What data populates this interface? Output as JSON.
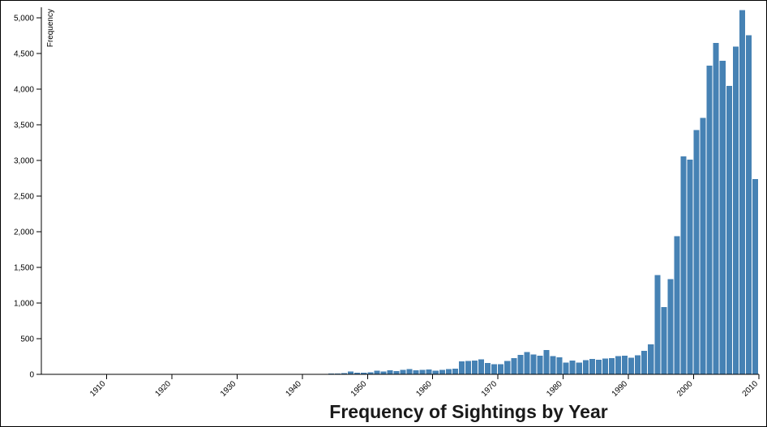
{
  "chart_data": {
    "type": "bar",
    "title": "Frequency of Sightings by Year",
    "xlabel": "",
    "ylabel": "Frequency",
    "bar_color": "#4682b4",
    "xlim": [
      1900,
      2010
    ],
    "ylim": [
      0,
      5150
    ],
    "x_ticks": [
      1910,
      1920,
      1930,
      1940,
      1950,
      1960,
      1970,
      1980,
      1990,
      2000,
      2010
    ],
    "y_ticks": [
      0,
      500,
      1000,
      1500,
      2000,
      2500,
      3000,
      3500,
      4000,
      4500,
      5000
    ],
    "y_tick_labels": [
      "0",
      "500",
      "1,000",
      "1,500",
      "2,000",
      "2,500",
      "3,000",
      "3,500",
      "4,000",
      "4,500",
      "5,000"
    ],
    "grid": false,
    "legend": "none",
    "categories": [
      1905,
      1906,
      1907,
      1908,
      1909,
      1910,
      1911,
      1912,
      1913,
      1914,
      1915,
      1916,
      1917,
      1918,
      1919,
      1920,
      1921,
      1922,
      1923,
      1924,
      1925,
      1926,
      1927,
      1928,
      1929,
      1930,
      1931,
      1932,
      1933,
      1934,
      1935,
      1936,
      1937,
      1938,
      1939,
      1940,
      1941,
      1942,
      1943,
      1944,
      1945,
      1946,
      1947,
      1948,
      1949,
      1950,
      1951,
      1952,
      1953,
      1954,
      1955,
      1956,
      1957,
      1958,
      1959,
      1960,
      1961,
      1962,
      1963,
      1964,
      1965,
      1966,
      1967,
      1968,
      1969,
      1970,
      1971,
      1972,
      1973,
      1974,
      1975,
      1976,
      1977,
      1978,
      1979,
      1980,
      1981,
      1982,
      1983,
      1984,
      1985,
      1986,
      1987,
      1988,
      1989,
      1990,
      1991,
      1992,
      1993,
      1994,
      1995,
      1996,
      1997,
      1998,
      1999,
      2000,
      2001,
      2002,
      2003,
      2004,
      2005,
      2006,
      2007,
      2008,
      2009,
      2010
    ],
    "values": [
      1,
      2,
      1,
      1,
      1,
      1,
      1,
      1,
      1,
      1,
      1,
      1,
      1,
      1,
      1,
      2,
      1,
      1,
      1,
      1,
      1,
      1,
      1,
      1,
      1,
      2,
      1,
      1,
      1,
      2,
      2,
      2,
      2,
      3,
      3,
      3,
      4,
      5,
      6,
      8,
      10,
      12,
      18,
      40,
      20,
      25,
      30,
      50,
      40,
      55,
      45,
      60,
      75,
      55,
      60,
      70,
      50,
      65,
      75,
      80,
      180,
      185,
      195,
      210,
      160,
      145,
      140,
      185,
      230,
      275,
      310,
      280,
      260,
      340,
      255,
      240,
      165,
      195,
      165,
      200,
      215,
      205,
      220,
      225,
      255,
      260,
      235,
      265,
      330,
      420,
      1390,
      945,
      1335,
      1940,
      3060,
      3010,
      3430,
      3600,
      4330,
      4650,
      4400,
      4050,
      4600,
      5110,
      4760,
      2740
    ]
  }
}
